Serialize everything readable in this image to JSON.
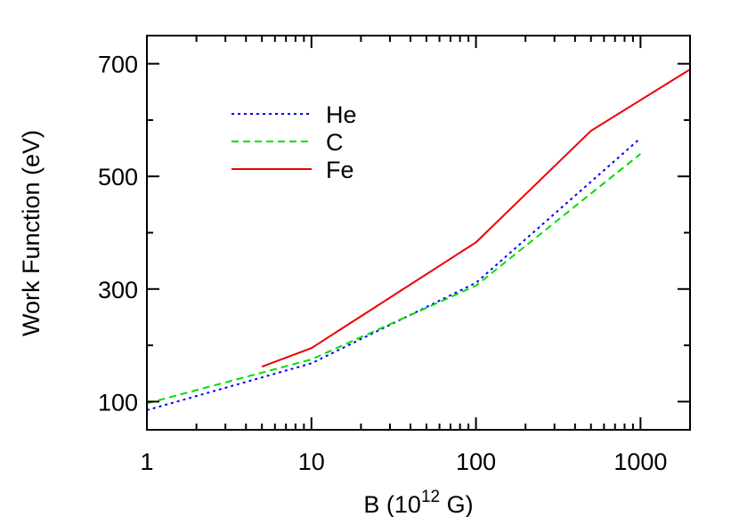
{
  "chart_data": {
    "type": "line",
    "xlabel_base": "B (10",
    "xlabel_exp": "12",
    "xlabel_unit": " G)",
    "ylabel": "Work Function (eV)",
    "x_scale": "log",
    "xlim": [
      1,
      2000
    ],
    "ylim": [
      50,
      750
    ],
    "x_ticks": [
      {
        "value": 1,
        "label": "1"
      },
      {
        "value": 10,
        "label": "10"
      },
      {
        "value": 100,
        "label": "100"
      },
      {
        "value": 1000,
        "label": "1000"
      }
    ],
    "y_ticks": [
      {
        "value": 100,
        "label": "100"
      },
      {
        "value": 300,
        "label": "300"
      },
      {
        "value": 500,
        "label": "500"
      },
      {
        "value": 700,
        "label": "700"
      }
    ],
    "y_minor_ticks": [
      200,
      400,
      600
    ],
    "grid": false,
    "legend_position": "top-left",
    "series": [
      {
        "name": "He",
        "color": "#0000ff",
        "style": "dotted",
        "x": [
          1,
          10,
          100,
          1000
        ],
        "y": [
          85,
          168,
          311,
          568
        ]
      },
      {
        "name": "C",
        "color": "#00dd00",
        "style": "dashed",
        "x": [
          1,
          10,
          100,
          1000
        ],
        "y": [
          97,
          175,
          306,
          540
        ]
      },
      {
        "name": "Fe",
        "color": "#ee0000",
        "style": "solid",
        "x": [
          5,
          10,
          100,
          500,
          2000
        ],
        "y": [
          162,
          195,
          383,
          581,
          690
        ]
      }
    ]
  }
}
